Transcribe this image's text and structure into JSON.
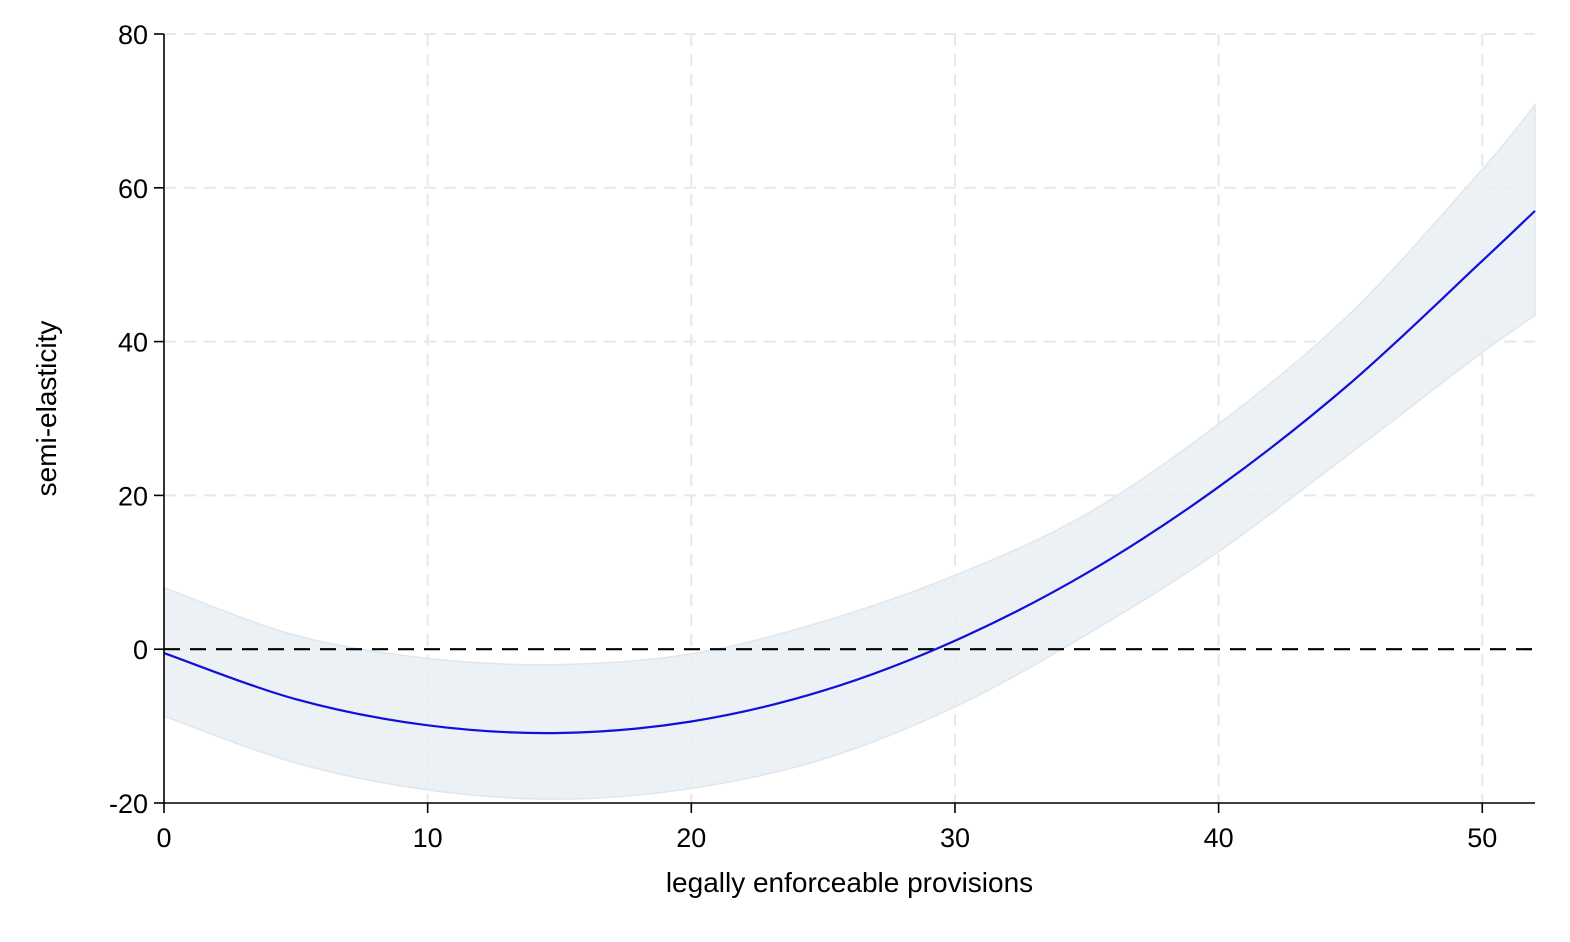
{
  "chart_data": {
    "type": "line",
    "title": "",
    "xlabel": "legally enforceable provisions",
    "ylabel": "semi-elasticity",
    "xlim": [
      0,
      52
    ],
    "ylim": [
      -20,
      80
    ],
    "x_ticks": [
      0,
      10,
      20,
      30,
      40,
      50
    ],
    "y_ticks": [
      -20,
      0,
      20,
      40,
      60,
      80
    ],
    "grid": true,
    "reference_line": {
      "y": 0,
      "style": "dashed",
      "color": "#000000"
    },
    "series": [
      {
        "color": "#1010d8",
        "x": [
          0,
          5,
          10,
          15,
          20,
          25,
          30,
          35,
          40,
          45,
          50,
          52
        ],
        "y": [
          -0.5,
          -6.5,
          -9.9,
          -10.9,
          -9.4,
          -5.4,
          1.1,
          9.9,
          21.1,
          34.6,
          50.5,
          57.0
        ],
        "ci_lower": [
          -8.7,
          -14.8,
          -18.3,
          -19.5,
          -18.1,
          -14.3,
          -7.5,
          1.9,
          12.7,
          25.5,
          38.6,
          43.4
        ],
        "ci_upper": [
          8.0,
          1.8,
          -1.2,
          -2.0,
          -0.6,
          3.6,
          9.6,
          17.6,
          29.3,
          43.7,
          62.4,
          70.8
        ],
        "band_color": "#e8eef3"
      }
    ]
  }
}
